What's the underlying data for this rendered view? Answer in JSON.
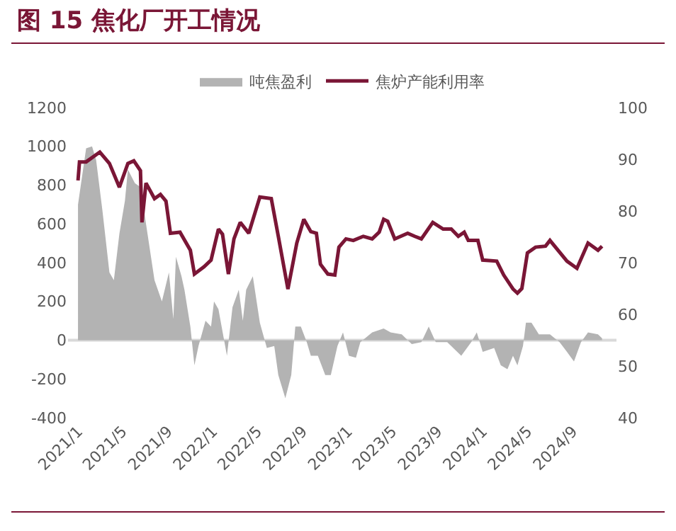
{
  "chart_data": {
    "type": "line",
    "title": "图 15 焦化厂开工情况",
    "xlim": [
      "2020-12-05",
      "2024-12-28"
    ],
    "xticks": [
      {
        "value": "2021-01-01",
        "label": "2021/1"
      },
      {
        "value": "2021-05-01",
        "label": "2021/5"
      },
      {
        "value": "2021-09-01",
        "label": "2021/9"
      },
      {
        "value": "2022-01-01",
        "label": "2022/1"
      },
      {
        "value": "2022-05-01",
        "label": "2022/5"
      },
      {
        "value": "2022-09-01",
        "label": "2022/9"
      },
      {
        "value": "2023-01-01",
        "label": "2023/1"
      },
      {
        "value": "2023-05-01",
        "label": "2023/5"
      },
      {
        "value": "2023-09-01",
        "label": "2023/9"
      },
      {
        "value": "2024-01-01",
        "label": "2024/1"
      },
      {
        "value": "2024-05-01",
        "label": "2024/5"
      },
      {
        "value": "2024-09-01",
        "label": "2024/9"
      }
    ],
    "ylim": [
      -400,
      1200
    ],
    "yticks": [
      -400,
      -200,
      0,
      200,
      400,
      600,
      800,
      1000,
      1200
    ],
    "y2lim": [
      40,
      100
    ],
    "y2ticks": [
      40,
      50,
      60,
      70,
      80,
      90,
      100
    ],
    "legend": "top",
    "grid": false,
    "ref_lines": [
      {
        "axis": "y",
        "value": 0,
        "color": "#d9d9d9"
      }
    ],
    "series": [
      {
        "name": "吨焦盈利",
        "type": "area",
        "color": "#b3b3b3",
        "x": [
          "2021-01-01",
          "2021-01-23",
          "2021-02-08",
          "2021-02-19",
          "2021-03-08",
          "2021-03-27",
          "2021-04-08",
          "2021-04-23",
          "2021-05-08",
          "2021-05-16",
          "2021-06-04",
          "2021-06-19",
          "2021-07-08",
          "2021-07-27",
          "2021-08-16",
          "2021-09-04",
          "2021-09-16",
          "2021-09-23",
          "2021-10-08",
          "2021-10-16",
          "2021-11-01",
          "2021-11-12",
          "2021-11-23",
          "2021-12-12",
          "2021-12-27",
          "2022-01-04",
          "2022-01-16",
          "2022-02-08",
          "2022-02-23",
          "2022-03-12",
          "2022-03-23",
          "2022-04-01",
          "2022-04-19",
          "2022-05-08",
          "2022-05-27",
          "2022-06-16",
          "2022-06-27",
          "2022-07-16",
          "2022-08-01",
          "2022-08-12",
          "2022-08-27",
          "2022-09-12",
          "2022-09-23",
          "2022-10-12",
          "2022-11-01",
          "2022-11-16",
          "2022-12-04",
          "2022-12-19",
          "2023-01-04",
          "2023-01-23",
          "2023-02-04",
          "2023-03-08",
          "2023-04-08",
          "2023-04-27",
          "2023-05-27",
          "2023-06-23",
          "2023-07-19",
          "2023-08-08",
          "2023-08-27",
          "2023-09-27",
          "2023-11-04",
          "2023-12-01",
          "2023-12-16",
          "2024-01-01",
          "2024-02-01",
          "2024-02-19",
          "2024-03-08",
          "2024-03-23",
          "2024-04-04",
          "2024-04-19",
          "2024-04-27",
          "2024-05-12",
          "2024-06-01",
          "2024-07-01",
          "2024-07-27",
          "2024-08-16",
          "2024-09-04",
          "2024-09-23",
          "2024-10-12",
          "2024-11-08",
          "2024-11-19"
        ],
        "values": [
          700,
          990,
          1000,
          930,
          670,
          350,
          310,
          550,
          720,
          880,
          810,
          790,
          550,
          310,
          200,
          350,
          110,
          430,
          330,
          260,
          70,
          -130,
          -30,
          100,
          70,
          200,
          160,
          -80,
          170,
          260,
          100,
          260,
          330,
          90,
          -40,
          -30,
          -180,
          -300,
          -180,
          70,
          70,
          -10,
          -80,
          -80,
          -180,
          -180,
          -30,
          40,
          -80,
          -90,
          -10,
          40,
          60,
          40,
          30,
          -20,
          -10,
          70,
          -10,
          -10,
          -80,
          -10,
          40,
          -60,
          -40,
          -130,
          -150,
          -80,
          -130,
          -30,
          90,
          90,
          30,
          30,
          -10,
          -60,
          -110,
          -10,
          40,
          30,
          10
        ]
      },
      {
        "name": "焦炉产能利用率",
        "axis": "y2",
        "color": "#7a1636",
        "x": [
          "2021-01-01",
          "2021-01-05",
          "2021-01-23",
          "2021-03-01",
          "2021-03-27",
          "2021-04-23",
          "2021-05-16",
          "2021-06-01",
          "2021-06-19",
          "2021-06-23",
          "2021-07-04",
          "2021-07-27",
          "2021-08-12",
          "2021-08-27",
          "2021-09-08",
          "2021-10-04",
          "2021-11-01",
          "2021-11-12",
          "2021-12-08",
          "2021-12-27",
          "2022-01-16",
          "2022-01-27",
          "2022-02-12",
          "2022-02-27",
          "2022-03-16",
          "2022-04-08",
          "2022-05-08",
          "2022-06-08",
          "2022-06-27",
          "2022-07-23",
          "2022-08-16",
          "2022-09-04",
          "2022-09-23",
          "2022-10-08",
          "2022-10-19",
          "2022-11-08",
          "2022-11-27",
          "2022-12-08",
          "2022-12-27",
          "2023-01-16",
          "2023-02-12",
          "2023-03-08",
          "2023-03-27",
          "2023-04-08",
          "2023-04-19",
          "2023-05-08",
          "2023-06-12",
          "2023-07-01",
          "2023-07-19",
          "2023-08-19",
          "2023-09-16",
          "2023-10-08",
          "2023-10-27",
          "2023-11-12",
          "2023-11-23",
          "2023-12-19",
          "2024-01-01",
          "2024-02-08",
          "2024-02-27",
          "2024-03-23",
          "2024-04-04",
          "2024-04-16",
          "2024-05-01",
          "2024-05-23",
          "2024-06-19",
          "2024-07-01",
          "2024-08-16",
          "2024-09-12",
          "2024-10-12",
          "2024-11-08",
          "2024-11-19"
        ],
        "values": [
          85.9,
          89.5,
          89.5,
          91.4,
          89.2,
          84.6,
          89.2,
          89.7,
          87.8,
          77.8,
          85.4,
          82.4,
          83.2,
          81.9,
          75.7,
          75.9,
          72.4,
          67.8,
          69.2,
          70.5,
          76.5,
          75.5,
          67.8,
          74.6,
          77.8,
          75.7,
          82.7,
          82.4,
          75.1,
          64.9,
          73.8,
          78.4,
          76.0,
          75.7,
          69.7,
          67.8,
          67.6,
          73.0,
          74.6,
          74.3,
          75.1,
          74.6,
          75.9,
          78.4,
          78.0,
          74.6,
          75.7,
          75.1,
          74.6,
          77.8,
          76.5,
          76.5,
          75.1,
          75.9,
          74.3,
          74.3,
          70.5,
          70.3,
          67.6,
          64.9,
          64.1,
          65.0,
          71.9,
          73.0,
          73.2,
          74.3,
          70.3,
          68.9,
          73.8,
          72.4,
          73.2
        ]
      }
    ]
  }
}
